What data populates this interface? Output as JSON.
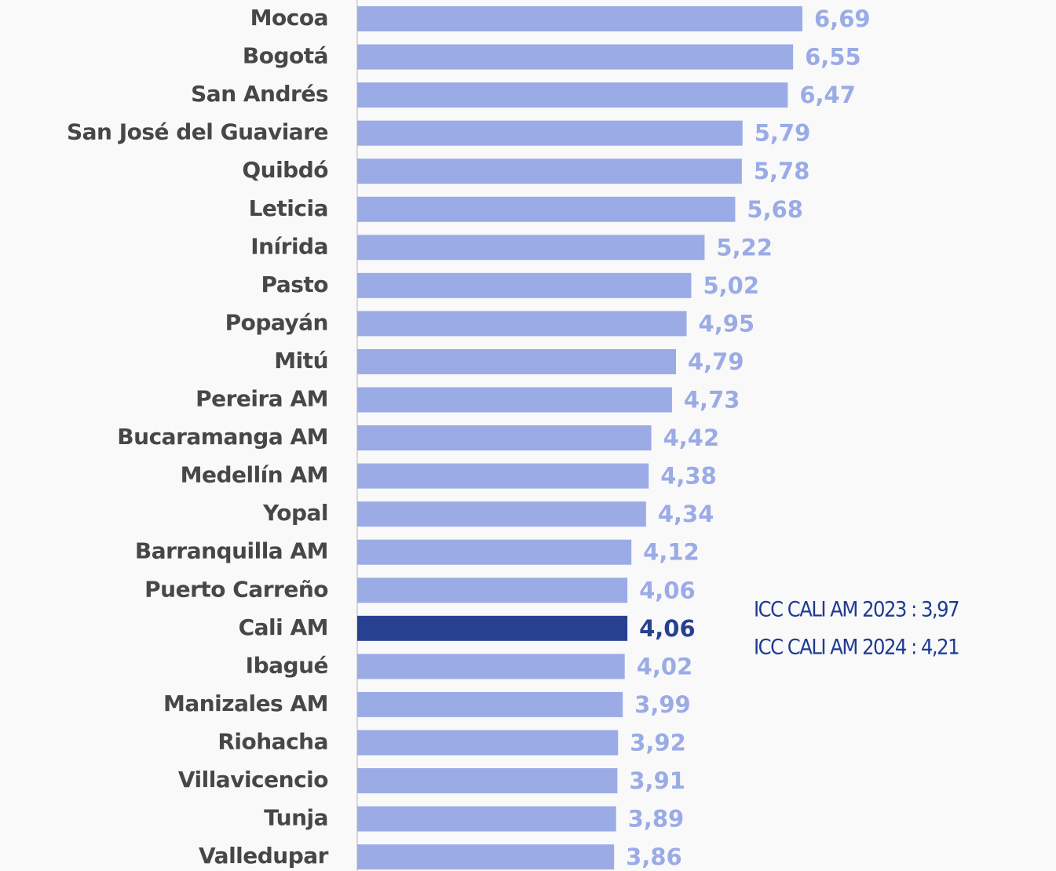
{
  "chart_data": {
    "type": "barh",
    "categories": [
      "Mocoa",
      "Bogotá",
      "San Andrés",
      "San José del Guaviare",
      "Quibdó",
      "Leticia",
      "Inírida",
      "Pasto",
      "Popayán",
      "Mitú",
      "Pereira AM",
      "Bucaramanga AM",
      "Medellín AM",
      "Yopal",
      "Barranquilla AM",
      "Puerto Carreño",
      "Cali AM",
      "Ibagué",
      "Manizales AM",
      "Riohacha",
      "Villavicencio",
      "Tunja",
      "Valledupar"
    ],
    "values": [
      6.69,
      6.55,
      6.47,
      5.79,
      5.78,
      5.68,
      5.22,
      5.02,
      4.95,
      4.79,
      4.73,
      4.42,
      4.38,
      4.34,
      4.12,
      4.06,
      4.06,
      4.02,
      3.99,
      3.92,
      3.91,
      3.89,
      3.86
    ],
    "value_labels": [
      "6,69",
      "6,55",
      "6,47",
      "5,79",
      "5,78",
      "5,68",
      "5,22",
      "5,02",
      "4,95",
      "4,79",
      "4,73",
      "4,42",
      "4,38",
      "4,34",
      "4,12",
      "4,06",
      "4,06",
      "4,02",
      "3,99",
      "3,92",
      "3,91",
      "3,89",
      "3,86"
    ],
    "colors": [
      "#9aabe6",
      "#9aabe6",
      "#9aabe6",
      "#9aabe6",
      "#9aabe6",
      "#9aabe6",
      "#9aabe6",
      "#9aabe6",
      "#9aabe6",
      "#9aabe6",
      "#9aabe6",
      "#9aabe6",
      "#9aabe6",
      "#9aabe6",
      "#9aabe6",
      "#9aabe6",
      "#27408f",
      "#9aabe6",
      "#9aabe6",
      "#9aabe6",
      "#9aabe6",
      "#9aabe6",
      "#9aabe6"
    ],
    "annotations": [
      "ICC CALI AM 2023 : 3,97",
      "ICC CALI AM 2024 : 4,21"
    ]
  }
}
